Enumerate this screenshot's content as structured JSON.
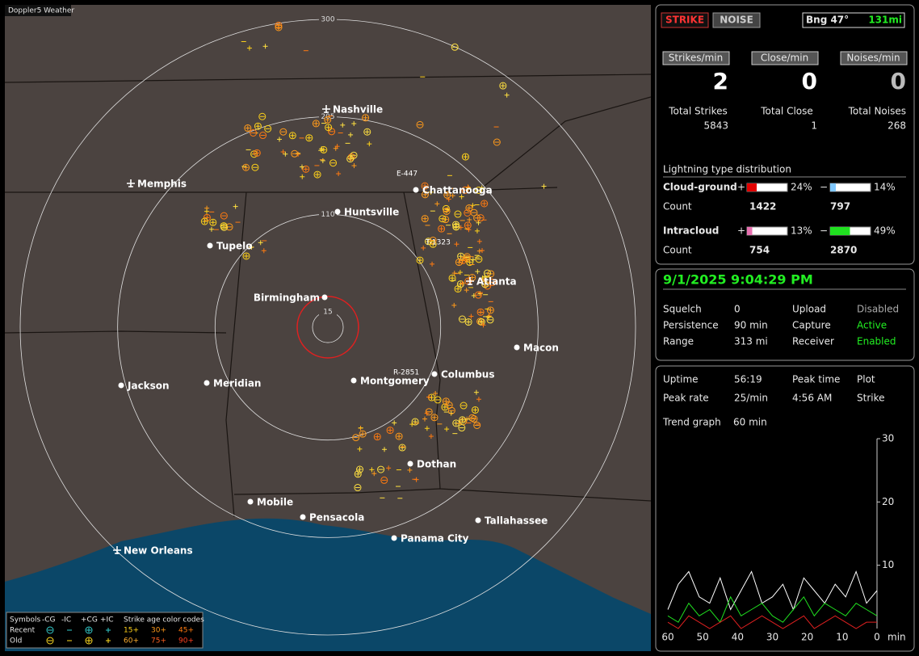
{
  "map": {
    "title": "Doppler5 Weather",
    "ring_labels": [
      15,
      110,
      205,
      300
    ],
    "cities": [
      "Nashville",
      "Memphis",
      "Chattanooga",
      "Huntsville",
      "Tupelo",
      "Atlanta",
      "Birmingham",
      "Macon",
      "Jackson",
      "Meridian",
      "Montgomery",
      "Columbus",
      "Dothan",
      "Mobile",
      "Pensacola",
      "Tallahassee",
      "Panama City",
      "New Orleans"
    ],
    "markers": [
      "E-447",
      "T-1323",
      "R-2851"
    ],
    "legend": {
      "symbols_label": "Symbols",
      "columns": [
        "-CG",
        "-IC",
        "+CG",
        "+IC"
      ],
      "age_label": "Strike age color codes",
      "rows": [
        {
          "label": "Recent",
          "ages": [
            "15+",
            "30+",
            "45+"
          ]
        },
        {
          "label": "Old",
          "ages": [
            "60+",
            "75+",
            "90+"
          ]
        }
      ]
    }
  },
  "panel": {
    "strike_button": "STRIKE",
    "noise_button": "NOISE",
    "bearing": "Bng 47°",
    "distance": "131mi",
    "rates": [
      {
        "label": "Strikes/min",
        "value": 2
      },
      {
        "label": "Close/min",
        "value": 0
      },
      {
        "label": "Noises/min",
        "value": 0
      }
    ],
    "totals": [
      {
        "label": "Total Strikes",
        "value": 5843
      },
      {
        "label": "Total Close",
        "value": 1
      },
      {
        "label": "Total Noises",
        "value": 268
      }
    ],
    "distribution": {
      "title": "Lightning type distribution",
      "plus_sign": "+",
      "minus_sign": "−",
      "count_label": "Count",
      "rows": [
        {
          "name": "Cloud-ground",
          "values": [
            24,
            14
          ],
          "value_labels": [
            "24%",
            "14%"
          ],
          "counts": [
            1422,
            797
          ],
          "colors": [
            "#e00000",
            "#80c8ff"
          ]
        },
        {
          "name": "Intracloud",
          "values": [
            13,
            49
          ],
          "value_labels": [
            "13%",
            "49%"
          ],
          "counts": [
            754,
            2870
          ],
          "colors": [
            "#e870b0",
            "#20e020"
          ]
        }
      ]
    },
    "datetime": "9/1/2025 9:04:29 PM",
    "status": [
      [
        "Squelch",
        "0",
        "Upload",
        "Disabled"
      ],
      [
        "Persistence",
        "90 min",
        "Capture",
        "Active"
      ],
      [
        "Range",
        "313 mi",
        "Receiver",
        "Enabled"
      ]
    ],
    "stats": [
      [
        "Uptime",
        "56:19",
        "Peak time",
        "Plot"
      ],
      [
        "Peak rate",
        "25/min",
        "4:56 AM",
        "Strike"
      ],
      [
        "Trend graph",
        "60 min"
      ]
    ]
  },
  "chart_data": {
    "type": "line",
    "x_label": "min",
    "x": [
      60,
      57,
      54,
      51,
      48,
      45,
      42,
      39,
      36,
      33,
      30,
      27,
      24,
      21,
      18,
      15,
      12,
      9,
      6,
      3,
      0
    ],
    "xlim": [
      60,
      0
    ],
    "ylim": [
      0,
      30
    ],
    "xticks": [
      60,
      50,
      40,
      30,
      20,
      10,
      0
    ],
    "yticks": [
      10,
      20,
      30
    ],
    "series": [
      {
        "color": "#ffffff",
        "values": [
          3,
          7,
          9,
          5,
          4,
          8,
          3,
          6,
          9,
          4,
          5,
          7,
          3,
          8,
          6,
          4,
          7,
          5,
          9,
          4,
          6
        ]
      },
      {
        "color": "#20e020",
        "values": [
          2,
          1,
          4,
          2,
          3,
          1,
          5,
          2,
          3,
          4,
          2,
          1,
          3,
          5,
          2,
          4,
          3,
          2,
          4,
          3,
          2
        ]
      },
      {
        "color": "#e02020",
        "values": [
          1,
          0,
          2,
          1,
          0,
          1,
          2,
          0,
          1,
          2,
          1,
          0,
          1,
          2,
          0,
          1,
          2,
          1,
          0,
          1,
          1
        ]
      }
    ]
  }
}
